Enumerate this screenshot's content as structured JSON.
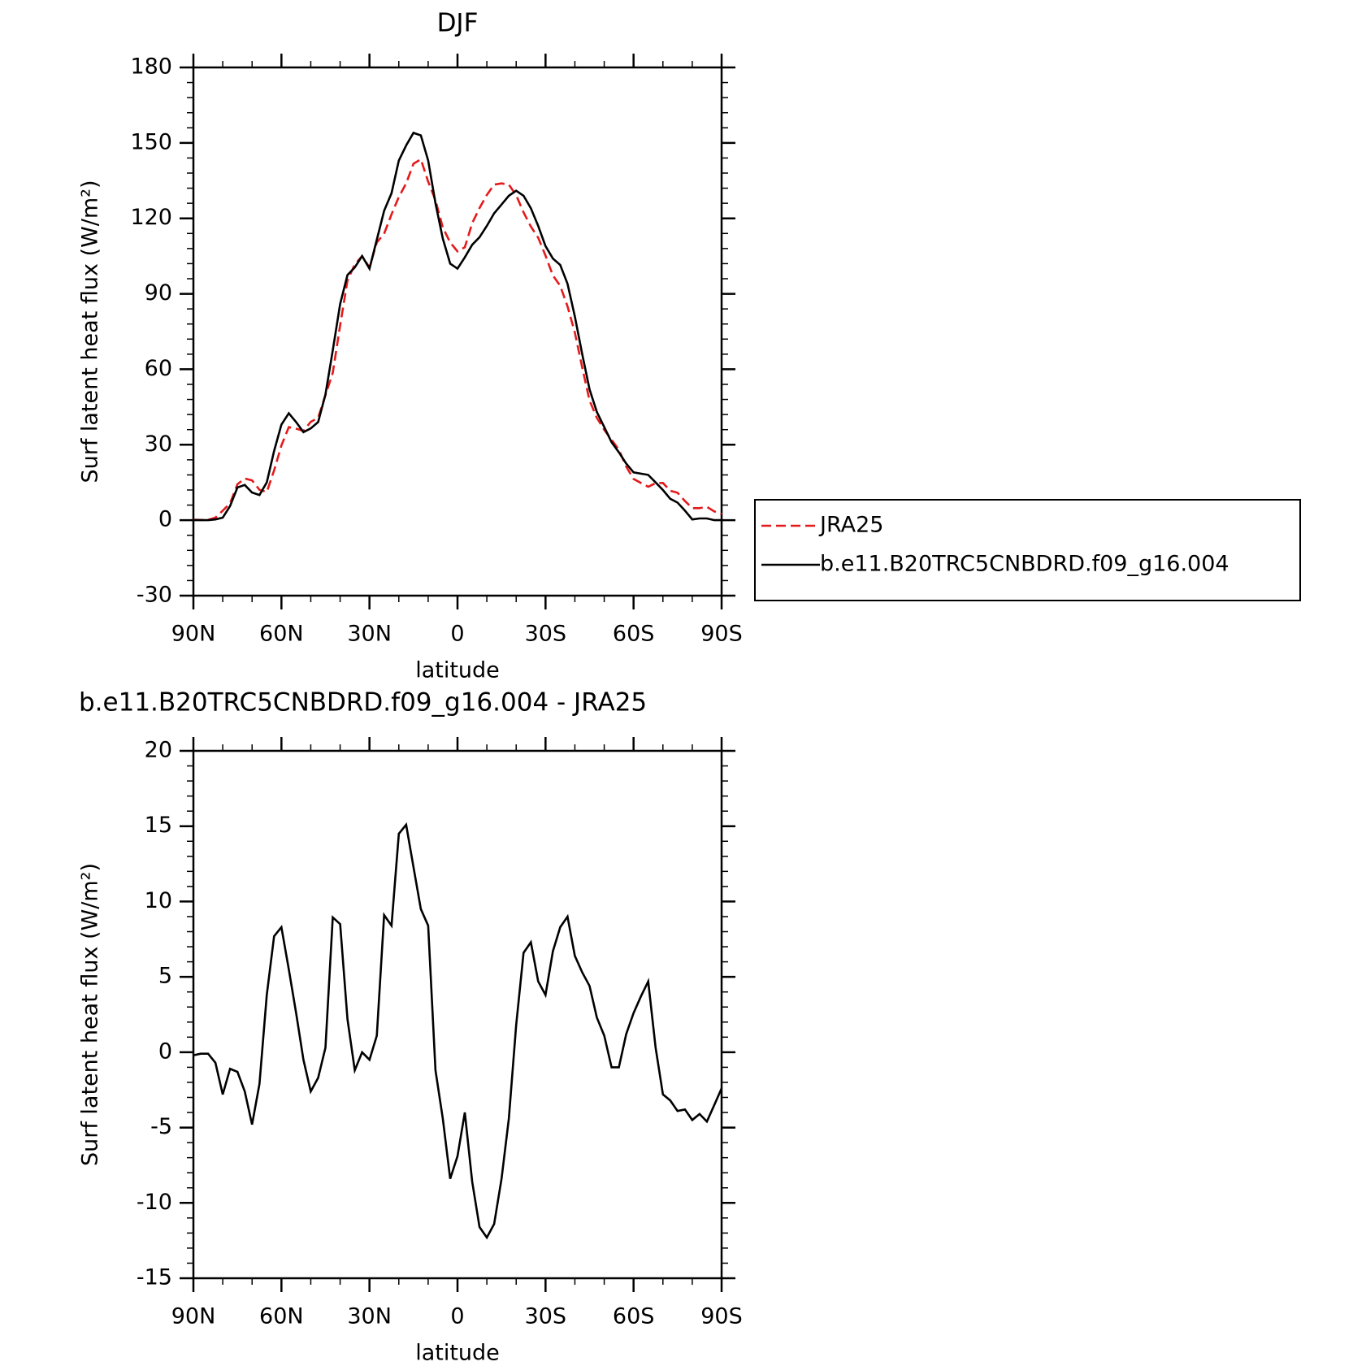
{
  "chart_data": [
    {
      "type": "line",
      "title": "DJF",
      "x_label": "latitude",
      "y_label": "Surf latent heat flux (W/m²)",
      "x": [
        90,
        87.5,
        85,
        82.5,
        80,
        77.5,
        75,
        72.5,
        70,
        67.5,
        65,
        62.5,
        60,
        57.5,
        55,
        52.5,
        50,
        47.5,
        45,
        42.5,
        40,
        37.5,
        35,
        32.5,
        30,
        27.5,
        25,
        22.5,
        20,
        17.5,
        15,
        12.5,
        10,
        7.5,
        5,
        2.5,
        0,
        -2.5,
        -5,
        -7.5,
        -10,
        -12.5,
        -15,
        -17.5,
        -20,
        -22.5,
        -25,
        -27.5,
        -30,
        -32.5,
        -35,
        -37.5,
        -40,
        -42.5,
        -45,
        -47.5,
        -50,
        -52.5,
        -55,
        -57.5,
        -60,
        -62.5,
        -65,
        -67.5,
        -70,
        -72.5,
        -75,
        -77.5,
        -80,
        -82.5,
        -85,
        -87.5,
        -90
      ],
      "series": [
        {
          "name": "JRA25",
          "color": "#e41a1c",
          "dash": "dashed",
          "values": [
            0.2,
            0.1,
            0.1,
            1.0,
            3.8,
            6.7,
            14.3,
            16.6,
            15.8,
            12.1,
            11.2,
            19.8,
            29.7,
            37,
            36.4,
            35.5,
            39.1,
            40.7,
            49.7,
            58.6,
            77.5,
            95.3,
            101.7,
            105,
            100.5,
            110.4,
            113.9,
            121.6,
            128.5,
            133.9,
            141.7,
            143.5,
            134.6,
            127.2,
            116.4,
            110.4,
            106.9,
            108.5,
            118.1,
            124.1,
            129.3,
            133.4,
            133.9,
            133.4,
            129.2,
            122.4,
            116.7,
            112.3,
            105.2,
            97.3,
            93.2,
            85,
            74.6,
            60.7,
            47.6,
            40.7,
            35.9,
            32,
            28,
            21.3,
            16.4,
            14.8,
            13.3,
            14.7,
            14.8,
            11.7,
            10.9,
            7.6,
            4.8,
            4.8,
            5.3,
            3.5,
            2.4
          ]
        },
        {
          "name": "b.e11.B20TRC5CNBDRD.f09_g16.004",
          "color": "#000000",
          "dash": "solid",
          "values": [
            0,
            0,
            0,
            0.3,
            1,
            5.6,
            13,
            14,
            11,
            10,
            15,
            27.5,
            38,
            42.5,
            39,
            35,
            36.5,
            39,
            50,
            67.5,
            86,
            97.5,
            100.5,
            105,
            100,
            111.5,
            123,
            130,
            143,
            149,
            154,
            153,
            143,
            126,
            112,
            102,
            100,
            104.5,
            109.5,
            112.5,
            117,
            122,
            125.5,
            129,
            131,
            129,
            124,
            117,
            109,
            104,
            101.5,
            94,
            81,
            66,
            52,
            43,
            37,
            31,
            27,
            22.5,
            19,
            18.5,
            18,
            15,
            12,
            8.5,
            7,
            3.8,
            0.3,
            0.7,
            0.7,
            0,
            0
          ]
        }
      ],
      "xlim": [
        90,
        -90
      ],
      "ylim": [
        -30,
        180
      ],
      "xticks": [
        {
          "value": 90,
          "label": "90N"
        },
        {
          "value": 60,
          "label": "60N"
        },
        {
          "value": 30,
          "label": "30N"
        },
        0,
        {
          "value": -30,
          "label": "30S"
        },
        {
          "value": -60,
          "label": "60S"
        },
        {
          "value": -90,
          "label": "90S"
        }
      ],
      "yticks": [
        -30,
        0,
        30,
        60,
        90,
        120,
        150,
        180
      ],
      "legend": "right"
    },
    {
      "type": "line",
      "title": "b.e11.B20TRC5CNBDRD.f09_g16.004 - JRA25",
      "x_label": "latitude",
      "y_label": "Surf latent heat flux (W/m²)",
      "x": [
        90,
        87.5,
        85,
        82.5,
        80,
        77.5,
        75,
        72.5,
        70,
        67.5,
        65,
        62.5,
        60,
        57.5,
        55,
        52.5,
        50,
        47.5,
        45,
        42.5,
        40,
        37.5,
        35,
        32.5,
        30,
        27.5,
        25,
        22.5,
        20,
        17.5,
        15,
        12.5,
        10,
        7.5,
        5,
        2.5,
        0,
        -2.5,
        -5,
        -7.5,
        -10,
        -12.5,
        -15,
        -17.5,
        -20,
        -22.5,
        -25,
        -27.5,
        -30,
        -32.5,
        -35,
        -37.5,
        -40,
        -42.5,
        -45,
        -47.5,
        -50,
        -52.5,
        -55,
        -57.5,
        -60,
        -62.5,
        -65,
        -67.5,
        -70,
        -72.5,
        -75,
        -77.5,
        -80,
        -82.5,
        -85,
        -87.5,
        -90
      ],
      "color": "#000000",
      "values": [
        -0.2,
        -0.1,
        -0.1,
        -0.7,
        -2.8,
        -1.1,
        -1.3,
        -2.6,
        -4.8,
        -2.1,
        3.8,
        7.7,
        8.3,
        5.5,
        2.6,
        -0.5,
        -2.6,
        -1.7,
        0.3,
        8.95,
        8.5,
        2.2,
        -1.2,
        0,
        -0.5,
        1.1,
        9.1,
        8.4,
        14.5,
        15.1,
        12.3,
        9.5,
        8.4,
        -1.2,
        -4.4,
        -8.4,
        -6.9,
        -4.0,
        -8.6,
        -11.6,
        -12.3,
        -11.4,
        -8.4,
        -4.4,
        1.8,
        6.6,
        7.3,
        4.7,
        3.8,
        6.7,
        8.3,
        9.0,
        6.4,
        5.3,
        4.4,
        2.3,
        1.1,
        -1.0,
        -1.0,
        1.2,
        2.6,
        3.7,
        4.7,
        0.3,
        -2.8,
        -3.2,
        -3.9,
        -3.8,
        -4.5,
        -4.1,
        -4.6,
        -3.5,
        -2.4
      ],
      "xlim": [
        90,
        -90
      ],
      "ylim": [
        -15,
        20
      ],
      "xticks": [
        {
          "value": 90,
          "label": "90N"
        },
        {
          "value": 60,
          "label": "60N"
        },
        {
          "value": 30,
          "label": "30N"
        },
        0,
        {
          "value": -30,
          "label": "30S"
        },
        {
          "value": -60,
          "label": "60S"
        },
        {
          "value": -90,
          "label": "90S"
        }
      ],
      "yticks": [
        -15,
        -10,
        -5,
        0,
        5,
        10,
        15,
        20
      ]
    }
  ]
}
